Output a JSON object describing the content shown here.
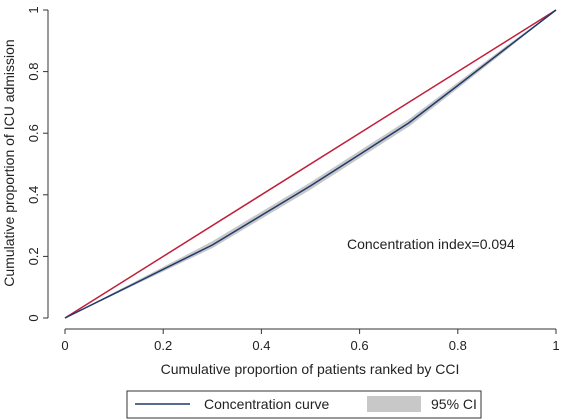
{
  "chart_data": {
    "type": "line",
    "title": "",
    "xlabel": "Cumulative proportion of patients ranked by CCI",
    "ylabel": "Cumulative proportion of ICU admission",
    "xlim": [
      0,
      1
    ],
    "ylim": [
      0,
      1
    ],
    "x_ticks": [
      "0",
      "0.2",
      "0.4",
      "0.6",
      "0.8",
      "1"
    ],
    "y_ticks": [
      "0",
      "0.2",
      "0.4",
      "0.6",
      "0.8",
      "1"
    ],
    "grid": false,
    "legend_position": "bottom",
    "annotation": "Concentration index=0.094",
    "series": [
      {
        "name": "Concentration curve",
        "color": "#1f3a6b",
        "x": [
          0,
          0.1,
          0.2,
          0.3,
          0.4,
          0.5,
          0.6,
          0.7,
          0.8,
          0.9,
          1.0
        ],
        "y": [
          0,
          0.079,
          0.158,
          0.237,
          0.333,
          0.429,
          0.531,
          0.633,
          0.755,
          0.878,
          1.0
        ]
      },
      {
        "name": "95% CI",
        "color": "#c8c8c8",
        "x": [
          0,
          0.1,
          0.2,
          0.3,
          0.4,
          0.5,
          0.6,
          0.7,
          0.8,
          0.9,
          1.0
        ],
        "y_low": [
          0,
          0.075,
          0.151,
          0.227,
          0.322,
          0.417,
          0.519,
          0.621,
          0.745,
          0.871,
          1.0
        ],
        "y_high": [
          0,
          0.083,
          0.166,
          0.249,
          0.345,
          0.441,
          0.543,
          0.645,
          0.765,
          0.885,
          1.0
        ]
      },
      {
        "color": "#c0203a",
        "x": [
          0,
          1
        ],
        "y": [
          0,
          1
        ]
      }
    ]
  }
}
